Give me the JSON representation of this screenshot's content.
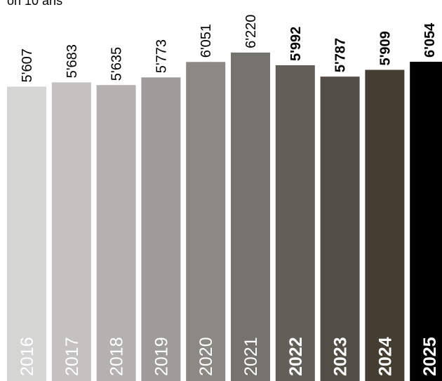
{
  "header": {
    "title": "on 10 ans"
  },
  "chart_data": {
    "type": "bar",
    "title": "on 10 ans",
    "xlabel": "",
    "ylabel": "",
    "categories": [
      "2016",
      "2017",
      "2018",
      "2019",
      "2020",
      "2021",
      "2022",
      "2023",
      "2024",
      "2025"
    ],
    "values": [
      5607,
      5683,
      5635,
      5773,
      6051,
      6220,
      5992,
      5787,
      5909,
      6054
    ],
    "value_labels": [
      "5'607",
      "5'683",
      "5'635",
      "5'773",
      "6'051",
      "6'220",
      "5'992",
      "5'787",
      "5'909",
      "6'054"
    ],
    "bold": [
      false,
      false,
      false,
      false,
      false,
      false,
      true,
      true,
      true,
      true
    ],
    "colors": [
      "#d5d5d3",
      "#c3c2c0",
      "#b3b2b0",
      "#9d9c98",
      "#8a8983",
      "#75736d",
      "#625f58",
      "#524d45",
      "#443d32",
      "#000000"
    ],
    "grid": false
  }
}
